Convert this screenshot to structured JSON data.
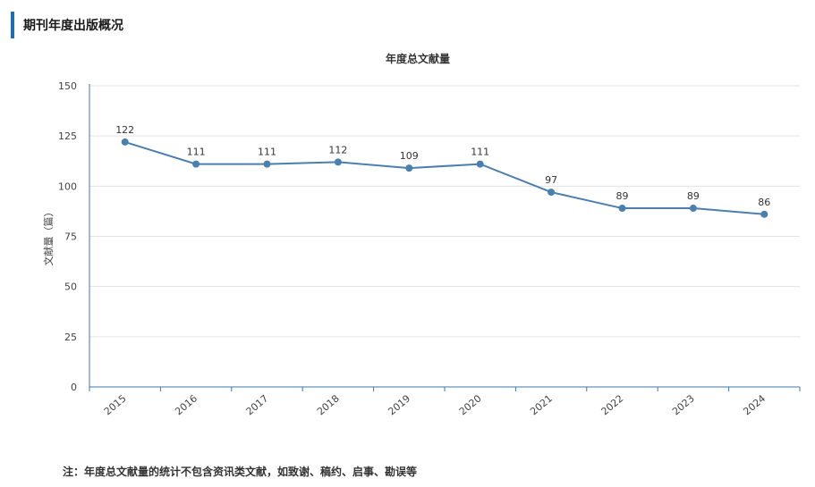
{
  "header": {
    "title": "期刊年度出版概况"
  },
  "note": "注：年度总文献量的统计不包含资讯类文献，如致谢、稿约、启事、勘误等",
  "chart_data": {
    "type": "line",
    "title": "年度总文献量",
    "xlabel": "",
    "ylabel": "文献量（篇）",
    "categories": [
      "2015",
      "2016",
      "2017",
      "2018",
      "2019",
      "2020",
      "2021",
      "2022",
      "2023",
      "2024"
    ],
    "values": [
      122,
      111,
      111,
      112,
      109,
      111,
      97,
      89,
      89,
      86
    ],
    "ylim": [
      0,
      150
    ],
    "yticks": [
      0,
      25,
      50,
      75,
      100,
      125,
      150
    ],
    "grid": true,
    "legend": "none",
    "color": "#4a7fb0"
  }
}
